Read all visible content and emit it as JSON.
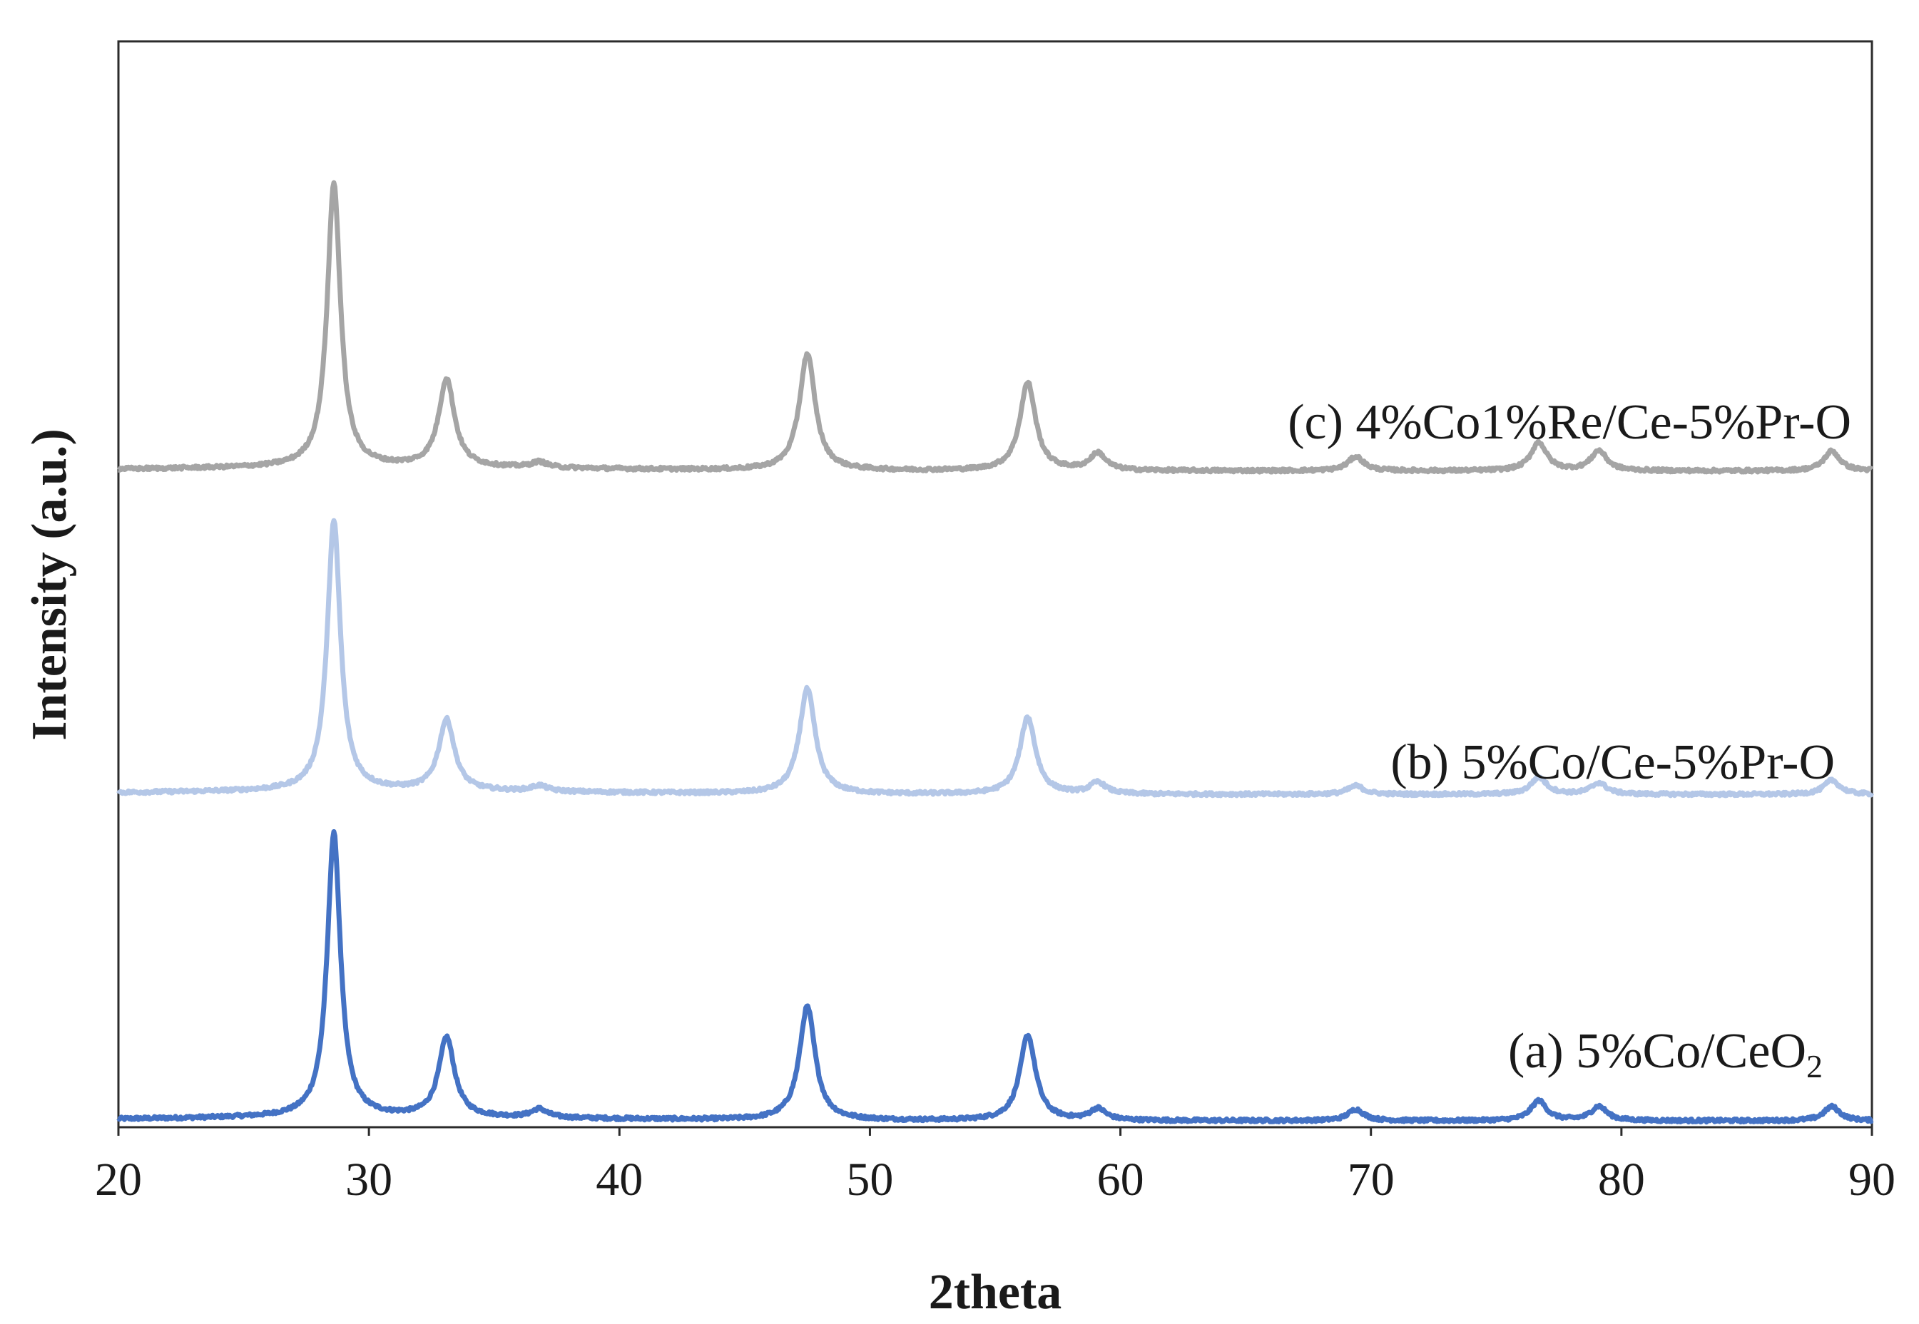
{
  "chart_data": {
    "type": "line",
    "xlabel": "2theta",
    "ylabel": "Intensity (a.u.)",
    "xlim": [
      20,
      90
    ],
    "xticks": [
      "20",
      "30",
      "40",
      "50",
      "60",
      "70",
      "80",
      "90"
    ],
    "yticks_shown": false,
    "grid": false,
    "legend": "none (series labelled directly above each trace)",
    "peaks_common": [
      28.6,
      33.1,
      36.8,
      47.5,
      56.3,
      59.1,
      69.4,
      76.7,
      79.1,
      88.4
    ],
    "series": [
      {
        "label": "(a) 5%Co/CeO",
        "label_subscript": "2",
        "color": "#4472c4",
        "baseline": 0.0,
        "peaks": [
          {
            "x": 28.6,
            "h": 100
          },
          {
            "x": 33.1,
            "h": 28
          },
          {
            "x": 36.8,
            "h": 3
          },
          {
            "x": 47.5,
            "h": 40
          },
          {
            "x": 56.3,
            "h": 30
          },
          {
            "x": 59.1,
            "h": 4
          },
          {
            "x": 69.4,
            "h": 4
          },
          {
            "x": 76.7,
            "h": 7
          },
          {
            "x": 79.1,
            "h": 5
          },
          {
            "x": 88.4,
            "h": 5
          }
        ]
      },
      {
        "label": "(b) 5%Co/Ce-5%Pr-O",
        "label_subscript": "",
        "color": "#b4c7e7",
        "baseline": 115,
        "peaks": [
          {
            "x": 28.6,
            "h": 95
          },
          {
            "x": 33.1,
            "h": 25
          },
          {
            "x": 36.8,
            "h": 2
          },
          {
            "x": 47.5,
            "h": 37
          },
          {
            "x": 56.3,
            "h": 27
          },
          {
            "x": 59.1,
            "h": 4
          },
          {
            "x": 69.4,
            "h": 3
          },
          {
            "x": 76.7,
            "h": 6
          },
          {
            "x": 79.1,
            "h": 4
          },
          {
            "x": 88.4,
            "h": 5
          }
        ]
      },
      {
        "label": "(c) 4%Co1%Re/Ce-5%Pr-O",
        "label_subscript": "",
        "color": "#a5a5a5",
        "baseline": 229,
        "peaks": [
          {
            "x": 28.6,
            "h": 100
          },
          {
            "x": 33.1,
            "h": 31
          },
          {
            "x": 36.8,
            "h": 2
          },
          {
            "x": 47.5,
            "h": 41
          },
          {
            "x": 56.3,
            "h": 31
          },
          {
            "x": 59.1,
            "h": 6
          },
          {
            "x": 69.4,
            "h": 5
          },
          {
            "x": 76.7,
            "h": 10
          },
          {
            "x": 79.1,
            "h": 7
          },
          {
            "x": 88.4,
            "h": 7
          }
        ]
      }
    ]
  }
}
